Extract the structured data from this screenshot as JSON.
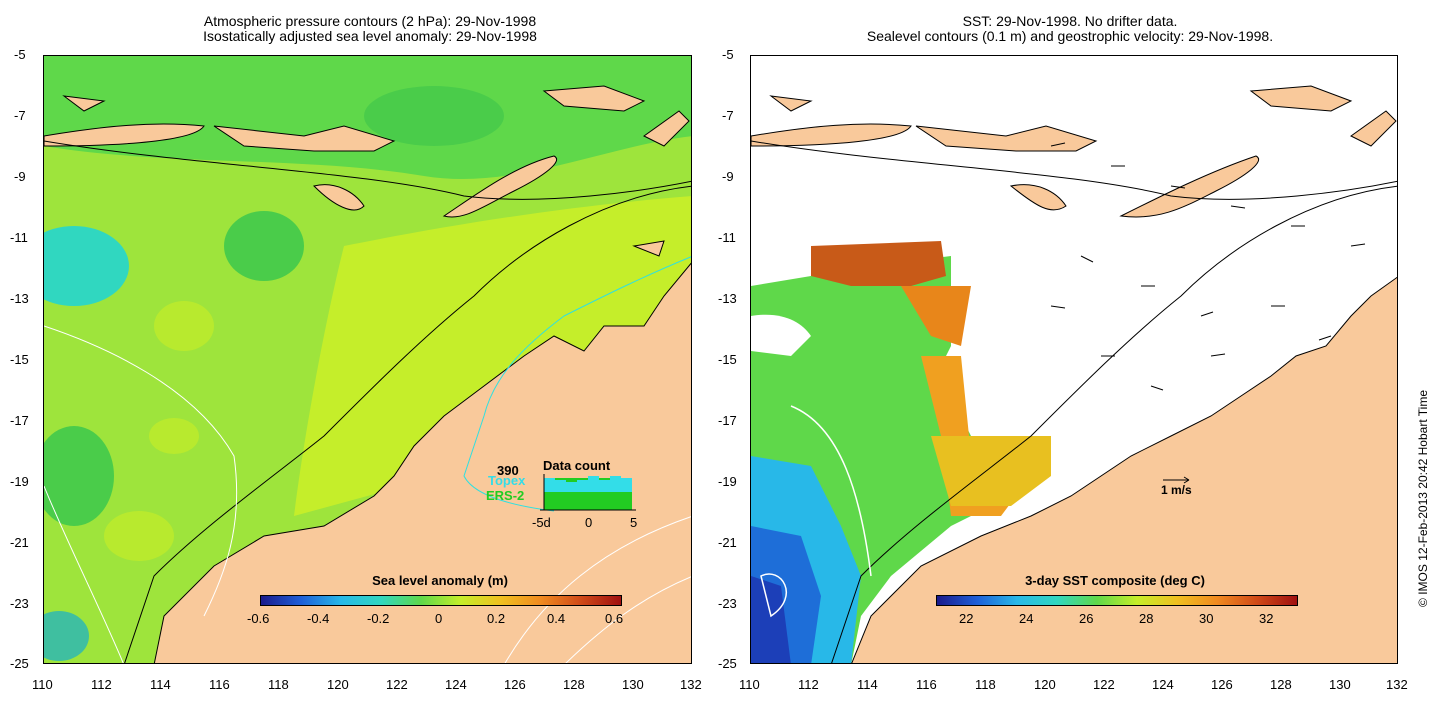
{
  "left_panel": {
    "title_line1": "Atmospheric pressure contours (2 hPa): 29-Nov-1998",
    "title_line2": "Isostatically adjusted sea level anomaly: 29-Nov-1998",
    "colorbar_label": "Sea level anomaly (m)",
    "colorbar_ticks": [
      "-0.6",
      "-0.4",
      "-0.2",
      "0",
      "0.2",
      "0.4",
      "0.6"
    ],
    "data_count": {
      "total": "390",
      "title": "Data count",
      "series1": "Topex",
      "series2": "ERS-2",
      "x_ticks": [
        "-5d",
        "0",
        "5"
      ],
      "series1_color": "#33dde8",
      "series2_color": "#22cc22"
    }
  },
  "right_panel": {
    "title_line1": "SST: 29-Nov-1998. No drifter data.",
    "title_line2": "Sealevel contours (0.1 m) and geostrophic velocity: 29-Nov-1998.",
    "colorbar_label": "3-day SST composite (deg C)",
    "colorbar_ticks": [
      "22",
      "24",
      "26",
      "28",
      "30",
      "32"
    ],
    "velocity_scale": "1 m/s"
  },
  "axes": {
    "y_ticks": [
      "-5",
      "-7",
      "-9",
      "-11",
      "-13",
      "-15",
      "-17",
      "-19",
      "-21",
      "-23",
      "-25"
    ],
    "x_ticks": [
      "110",
      "112",
      "114",
      "116",
      "118",
      "120",
      "122",
      "124",
      "126",
      "128",
      "130",
      "132"
    ]
  },
  "credit": "© IMOS 12-Feb-2013 20:42 Hobart Time",
  "colors": {
    "land": "#f9c99b",
    "sea_main": "#5fd84a",
    "sea_yellow": "#c5ee2a",
    "sea_cyan": "#30d7c0"
  }
}
